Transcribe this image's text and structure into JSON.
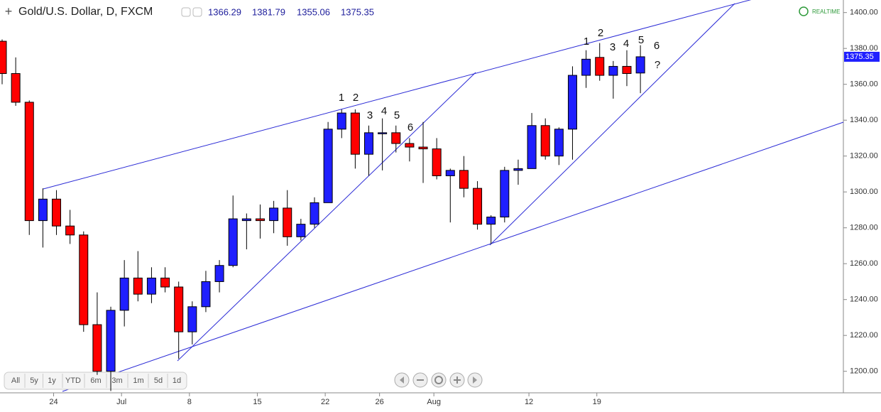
{
  "chart_data": {
    "type": "candlestick",
    "title": "Gold/U.S. Dollar, D, FXCM",
    "realtime_label": "REALTIME",
    "range_buttons": [
      "All",
      "5y",
      "1y",
      "YTD",
      "6m",
      "3m",
      "1m",
      "5d",
      "1d"
    ],
    "annotations": [
      "1",
      "2",
      "3",
      "4",
      "5",
      "6",
      "1",
      "2",
      "3",
      "4",
      "5",
      "6",
      "?"
    ],
    "categories": [
      null,
      null,
      null,
      null,
      "24",
      null,
      null,
      null,
      null,
      "Jul",
      null,
      null,
      null,
      null,
      "8",
      null,
      null,
      null,
      null,
      "15",
      null,
      null,
      null,
      null,
      "22",
      null,
      null,
      null,
      "26",
      null,
      null,
      null,
      "Aug",
      null,
      null,
      null,
      null,
      null,
      null,
      "12",
      null,
      null,
      null,
      null,
      "19",
      null,
      null,
      null
    ],
    "open": [
      1384,
      1366,
      1350,
      1284,
      1296,
      1281,
      1276,
      1226,
      1200,
      1234,
      1252,
      1243,
      1252,
      1247,
      1222,
      1236,
      1250,
      1259,
      1284,
      1285,
      1284,
      1291,
      1275,
      1282,
      1294,
      1335,
      1344,
      1321,
      1332.5,
      1333,
      1327,
      1325,
      1324,
      1309,
      1312,
      1302,
      1282,
      1286,
      1312,
      1313,
      1337,
      1320,
      1335,
      1365,
      1375,
      1365,
      1370,
      1366.29
    ],
    "high": [
      1385,
      1375,
      1351,
      1302,
      1301,
      1290,
      1278,
      1244,
      1236,
      1262,
      1267,
      1258,
      1258,
      1250,
      1239,
      1256,
      1262,
      1298,
      1288,
      1293,
      1295,
      1301,
      1285,
      1297,
      1339,
      1346,
      1346,
      1337,
      1341,
      1337,
      1330,
      1339,
      1330,
      1313,
      1320,
      1306,
      1287,
      1314,
      1318,
      1344,
      1341,
      1336,
      1370,
      1379,
      1383,
      1373,
      1379,
      1381.79
    ],
    "low": [
      1360,
      1348,
      1276,
      1269,
      1276,
      1271,
      1222,
      1198,
      1189,
      1225,
      1239,
      1238,
      1244,
      1207,
      1215,
      1233,
      1244,
      1258,
      1268,
      1274,
      1277,
      1270,
      1273,
      1280,
      1294,
      1330,
      1313,
      1309,
      1312,
      1322,
      1317,
      1305,
      1307,
      1283,
      1297,
      1279,
      1271,
      1283,
      1304,
      1313,
      1318,
      1315,
      1318,
      1358,
      1362,
      1352,
      1359,
      1355.06
    ],
    "close": [
      1366,
      1350,
      1284,
      1296,
      1281,
      1276,
      1226,
      1200,
      1234,
      1252,
      1243,
      1252,
      1247,
      1222,
      1236,
      1250,
      1259,
      1285,
      1285,
      1284,
      1291,
      1275,
      1282,
      1294,
      1335,
      1344,
      1321,
      1333,
      1333,
      1327,
      1325,
      1324,
      1309,
      1312,
      1302,
      1282,
      1286,
      1312,
      1313,
      1337,
      1320,
      1335,
      1365,
      1374,
      1365,
      1370,
      1366,
      1375.35
    ],
    "up_color": "#1f1fff",
    "down_color": "#ff0000",
    "ylim": [
      1188,
      1407
    ],
    "yticks": [
      {
        "value": 1200,
        "label": "1200.00"
      },
      {
        "value": 1220,
        "label": "1220.00"
      },
      {
        "value": 1240,
        "label": "1240.00"
      },
      {
        "value": 1260,
        "label": "1260.00"
      },
      {
        "value": 1280,
        "label": "1280.00"
      },
      {
        "value": 1300,
        "label": "1300.00"
      },
      {
        "value": 1320,
        "label": "1320.00"
      },
      {
        "value": 1340,
        "label": "1340.00"
      },
      {
        "value": 1360,
        "label": "1360.00"
      },
      {
        "value": 1380,
        "label": "1380.00"
      },
      {
        "value": 1400,
        "label": "1400.00"
      }
    ]
  }
}
